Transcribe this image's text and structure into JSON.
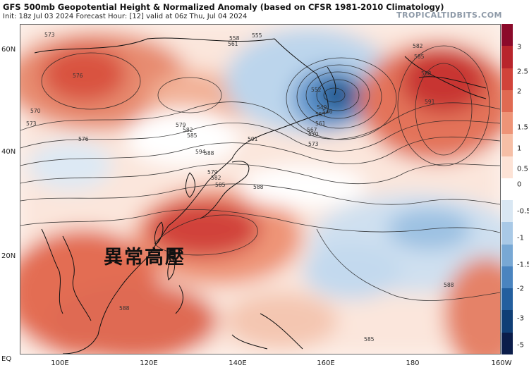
{
  "header": {
    "title": "GFS 500mb Geopotential Height & Normalized Anomaly (based on CFSR 1981-2010 Climatology)",
    "subtitle": "Init: 18z Jul 03 2024   Forecast Hour: [12]   valid at 06z Thu, Jul 04 2024",
    "brand": "TROPICALTIDBITS.COM"
  },
  "annotation": {
    "text": "異常高壓"
  },
  "axes": {
    "lat_labels": [
      "60N",
      "40N",
      "20N",
      "EQ"
    ],
    "lon_labels": [
      "100E",
      "120E",
      "140E",
      "160E",
      "180",
      "160W"
    ]
  },
  "colorbar": {
    "ticks": [
      "3",
      "2.5",
      "2",
      "1.5",
      "1",
      "0.5",
      "0",
      "-0.5",
      "-1",
      "-1.5",
      "-2",
      "-3",
      "-5"
    ],
    "colors": [
      "#8b0a2a",
      "#b8252c",
      "#d1433a",
      "#e06a52",
      "#ee9477",
      "#f6bfa6",
      "#fde3d6",
      "#ffffff",
      "#d9e7f3",
      "#a9c9e6",
      "#78a8d4",
      "#4a84bf",
      "#235f9e",
      "#103f76",
      "#0b1d4a"
    ]
  },
  "contours": {
    "labels": [
      "573",
      "576",
      "555",
      "558",
      "561",
      "570",
      "573",
      "576",
      "579",
      "582",
      "585",
      "588",
      "591",
      "594",
      "579",
      "582",
      "585",
      "588",
      "573",
      "570",
      "567",
      "561",
      "555",
      "552",
      "549",
      "546",
      "582",
      "585",
      "588",
      "591",
      "588",
      "588",
      "585"
    ]
  },
  "colors": {
    "warm": "#d9533f",
    "cool": "#4f86c4",
    "land": "#000000"
  }
}
